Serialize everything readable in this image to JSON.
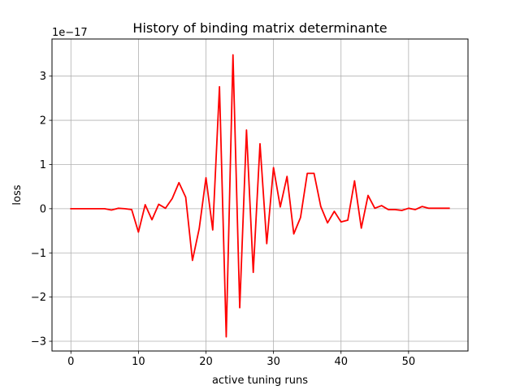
{
  "chart_data": {
    "type": "line",
    "title": "History of binding matrix determinante",
    "xlabel": "active tuning runs",
    "ylabel": "loss",
    "offset_label": "1e−17",
    "xlim": [
      -2.8,
      58.8
    ],
    "ylim": [
      -3.22,
      3.84
    ],
    "xticks": [
      0,
      10,
      20,
      30,
      40,
      50
    ],
    "xtick_labels": [
      "0",
      "10",
      "20",
      "30",
      "40",
      "50"
    ],
    "yticks": [
      -3,
      -2,
      -1,
      0,
      1,
      2,
      3
    ],
    "ytick_labels": [
      "−3",
      "−2",
      "−1",
      "0",
      "1",
      "2",
      "3"
    ],
    "grid": true,
    "line_color": "#ff0000",
    "series": [
      {
        "x": [
          0,
          1,
          2,
          3,
          4,
          5,
          6,
          7,
          8,
          9,
          10,
          11,
          12,
          13,
          14,
          15,
          16,
          17,
          18,
          19,
          20,
          21,
          22,
          23,
          24,
          25,
          26,
          27,
          28,
          29,
          30,
          31,
          32,
          33,
          34,
          35,
          36,
          37,
          38,
          39,
          40,
          41,
          42,
          43,
          44,
          45,
          46,
          47,
          48,
          49,
          50,
          51,
          52,
          53,
          54,
          55,
          56
        ],
        "values": [
          0,
          0,
          0,
          0,
          0,
          0,
          -0.03,
          0.01,
          0,
          -0.02,
          -0.53,
          0.09,
          -0.25,
          0.1,
          0.01,
          0.23,
          0.59,
          0.26,
          -1.17,
          -0.45,
          0.7,
          -0.48,
          2.76,
          -2.9,
          3.48,
          -2.24,
          1.78,
          -1.44,
          1.47,
          -0.79,
          0.93,
          0.04,
          0.73,
          -0.57,
          -0.2,
          0.8,
          0.8,
          0.05,
          -0.32,
          -0.06,
          -0.3,
          -0.26,
          0.63,
          -0.44,
          0.3,
          0.01,
          0.07,
          -0.02,
          -0.02,
          -0.04,
          0.01,
          -0.02,
          0.05,
          0.01,
          0.01,
          0.01,
          0.01
        ]
      }
    ]
  }
}
